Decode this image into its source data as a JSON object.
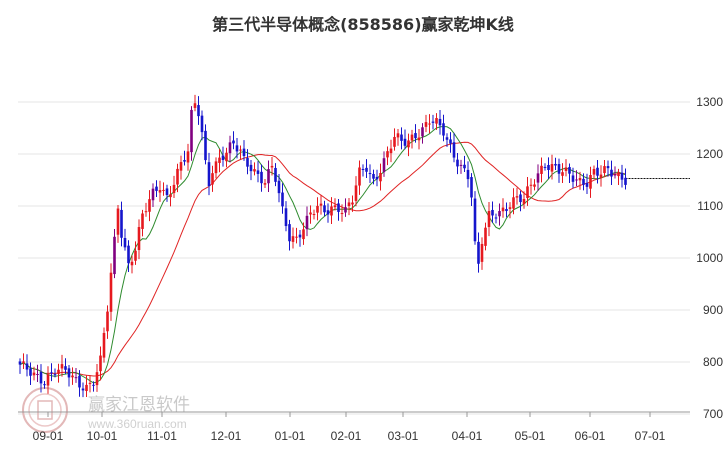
{
  "chart_data": {
    "type": "candlestick",
    "title": "第三代半导体概念(858586)赢家乾坤K线",
    "y_ticks": [
      700,
      800,
      900,
      1000,
      1100,
      1200,
      1300
    ],
    "ylim": [
      680,
      1340
    ],
    "x_ticks": [
      "09-01",
      "10-01",
      "11-01",
      "12-01",
      "01-01",
      "02-01",
      "03-01",
      "04-01",
      "05-01",
      "06-01",
      "07-01"
    ],
    "grid": "horizontal",
    "colors": {
      "up": "#e6191f",
      "down": "#1515cc",
      "neutral": "#800080",
      "fast_line": "#2e8b2e",
      "slow_line": "#e02424",
      "last_price": "#111111"
    },
    "price_path": [
      [
        0,
        790
      ],
      [
        4,
        775
      ],
      [
        7,
        768
      ],
      [
        10,
        785
      ],
      [
        13,
        780
      ],
      [
        16,
        762
      ],
      [
        19,
        755
      ],
      [
        21,
        765
      ],
      [
        23,
        800
      ],
      [
        25,
        900
      ],
      [
        27,
        1030
      ],
      [
        28,
        1100
      ],
      [
        29,
        1050
      ],
      [
        31,
        990
      ],
      [
        33,
        1020
      ],
      [
        35,
        1080
      ],
      [
        38,
        1120
      ],
      [
        40,
        1140
      ],
      [
        42,
        1120
      ],
      [
        44,
        1150
      ],
      [
        46,
        1180
      ],
      [
        48,
        1200
      ],
      [
        49,
        1270
      ],
      [
        50,
        1295
      ],
      [
        51,
        1280
      ],
      [
        52,
        1240
      ],
      [
        53,
        1185
      ],
      [
        54,
        1150
      ],
      [
        55,
        1175
      ],
      [
        57,
        1190
      ],
      [
        59,
        1200
      ],
      [
        61,
        1215
      ],
      [
        63,
        1205
      ],
      [
        64,
        1190
      ],
      [
        66,
        1180
      ],
      [
        68,
        1160
      ],
      [
        70,
        1145
      ],
      [
        72,
        1170
      ],
      [
        73,
        1150
      ],
      [
        75,
        1090
      ],
      [
        77,
        1045
      ],
      [
        79,
        1040
      ],
      [
        81,
        1060
      ],
      [
        83,
        1080
      ],
      [
        85,
        1095
      ],
      [
        87,
        1090
      ],
      [
        89,
        1100
      ],
      [
        91,
        1100
      ],
      [
        93,
        1090
      ],
      [
        95,
        1110
      ],
      [
        97,
        1160
      ],
      [
        99,
        1175
      ],
      [
        101,
        1150
      ],
      [
        103,
        1175
      ],
      [
        105,
        1200
      ],
      [
        107,
        1230
      ],
      [
        109,
        1220
      ],
      [
        111,
        1225
      ],
      [
        113,
        1240
      ],
      [
        115,
        1250
      ],
      [
        117,
        1265
      ],
      [
        119,
        1255
      ],
      [
        121,
        1240
      ],
      [
        122,
        1225
      ],
      [
        124,
        1200
      ],
      [
        126,
        1180
      ],
      [
        128,
        1160
      ],
      [
        129,
        1120
      ],
      [
        130,
        1020
      ],
      [
        131,
        980
      ],
      [
        132,
        1030
      ],
      [
        134,
        1080
      ],
      [
        136,
        1090
      ],
      [
        138,
        1095
      ],
      [
        140,
        1105
      ],
      [
        142,
        1110
      ],
      [
        144,
        1110
      ],
      [
        146,
        1140
      ],
      [
        148,
        1165
      ],
      [
        150,
        1185
      ],
      [
        152,
        1175
      ],
      [
        154,
        1165
      ],
      [
        156,
        1160
      ],
      [
        158,
        1155
      ],
      [
        160,
        1150
      ],
      [
        162,
        1150
      ],
      [
        164,
        1165
      ],
      [
        166,
        1160
      ],
      [
        168,
        1165
      ],
      [
        170,
        1160
      ],
      [
        172,
        1158
      ],
      [
        173,
        1155
      ]
    ],
    "last_price": 1153
  },
  "watermark": {
    "brand": "赢家江恩软件",
    "url": "www.360ruan.com",
    "logo_text": "赢家"
  }
}
